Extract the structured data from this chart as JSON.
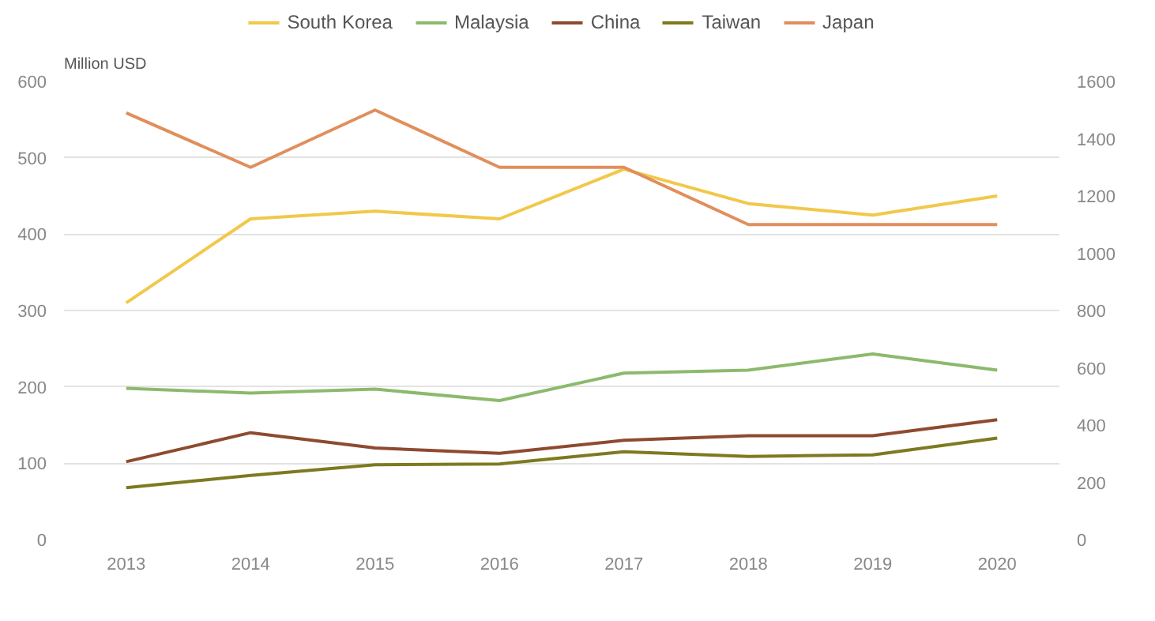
{
  "chart_data": {
    "type": "line",
    "ylabel": "Million USD",
    "categories": [
      "2013",
      "2014",
      "2015",
      "2016",
      "2017",
      "2018",
      "2019",
      "2020"
    ],
    "ylim": [
      0,
      600
    ],
    "yticks": [
      0,
      100,
      200,
      300,
      400,
      500,
      600
    ],
    "y2lim": [
      0,
      1600
    ],
    "y2ticks": [
      0,
      200,
      400,
      600,
      800,
      1000,
      1200,
      1400,
      1600
    ],
    "grid": "y",
    "legend": "top",
    "marker": "none",
    "line_style": "solid",
    "series": [
      {
        "name": "South Korea",
        "color": "#f2c84b",
        "values": [
          310,
          420,
          430,
          420,
          485,
          440,
          425,
          450
        ]
      },
      {
        "name": "Malaysia",
        "color": "#8cba6c",
        "values": [
          198,
          192,
          197,
          182,
          218,
          222,
          243,
          222
        ]
      },
      {
        "name": "China",
        "color": "#8e4a30",
        "values": [
          102,
          140,
          120,
          113,
          130,
          136,
          136,
          157
        ]
      },
      {
        "name": "Taiwan",
        "color": "#7d7a1f",
        "values": [
          68,
          84,
          98,
          99,
          115,
          109,
          111,
          133
        ]
      },
      {
        "name": "Japan",
        "color": "#e08f5c",
        "axis": "y2",
        "values": [
          1490,
          1300,
          1500,
          1300,
          1300,
          1100,
          1100,
          1100
        ]
      }
    ]
  }
}
